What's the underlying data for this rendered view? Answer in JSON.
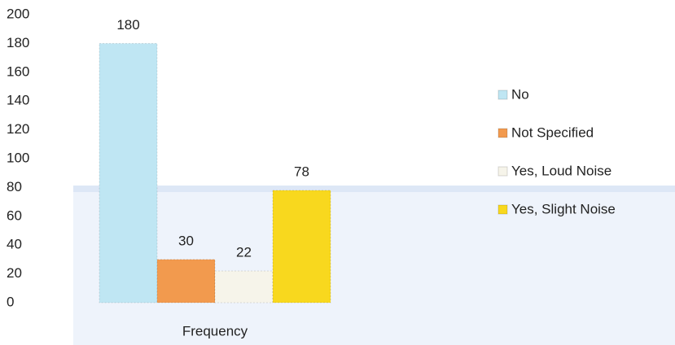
{
  "chart_data": {
    "type": "bar",
    "categories": [
      "Frequency"
    ],
    "series": [
      {
        "name": "No",
        "color": "#bfe6f3",
        "values": [
          180
        ]
      },
      {
        "name": "Not Specified",
        "color": "#f29a4e",
        "values": [
          30
        ]
      },
      {
        "name": "Yes, Loud Noise",
        "color": "#f6f4ea",
        "values": [
          22
        ]
      },
      {
        "name": "Yes, Slight Noise",
        "color": "#f8d81e",
        "values": [
          78
        ]
      }
    ],
    "ylim": [
      0,
      200
    ],
    "yticks": [
      0,
      20,
      40,
      60,
      80,
      100,
      120,
      140,
      160,
      180,
      200
    ],
    "grid": false,
    "legend": "right"
  }
}
